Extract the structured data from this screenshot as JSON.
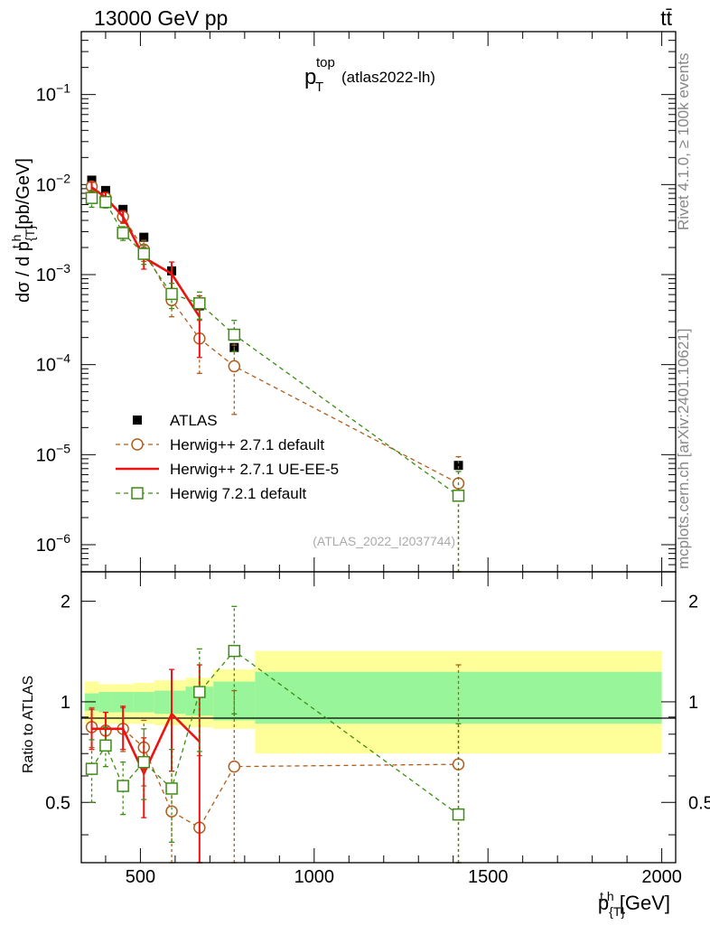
{
  "header": {
    "energy_label": "13000 GeV pp",
    "process_label": "tt̄"
  },
  "side_text": {
    "rivet": "Rivet 4.1.0, ≥ 100k events",
    "mcplots": "mcplots.cern.ch [arXiv:2401.10621]"
  },
  "chart_data": [
    {
      "panel": "main",
      "type": "scatter",
      "title_base": "p",
      "title_sub": "T",
      "title_sup": "top",
      "title_tag": "(atlas2022-lh)",
      "ylabel": "dσ / d p{T}t,h [pb/GeV]",
      "ylabel_parts": {
        "a": "dσ / d p",
        "sub": "{T}",
        "sup": "t,h",
        "b": " [pb/GeV]"
      },
      "y_scale": "log",
      "ylim": [
        5e-07,
        0.5
      ],
      "xlim": [
        330,
        2040
      ],
      "y_ticks": [
        {
          "v": 1e-06,
          "base": "10",
          "exp": "−6"
        },
        {
          "v": 1e-05,
          "base": "10",
          "exp": "−5"
        },
        {
          "v": 0.0001,
          "base": "10",
          "exp": "−4"
        },
        {
          "v": 0.001,
          "base": "10",
          "exp": "−3"
        },
        {
          "v": 0.01,
          "base": "10",
          "exp": "−2"
        },
        {
          "v": 0.1,
          "base": "10",
          "exp": "−1"
        }
      ],
      "watermark": "(ATLAS_2022_I2037744)",
      "legend_position": "bottom-left",
      "series": [
        {
          "name": "ATLAS",
          "style": "data",
          "color": "#000000",
          "x": [
            360,
            400,
            450,
            510,
            590,
            670,
            770,
            1415
          ],
          "values": [
            0.0112,
            0.0086,
            0.0053,
            0.0026,
            0.0011,
            0.00045,
            0.000155,
            7.6e-06
          ]
        },
        {
          "name": "Herwig++ 2.7.1 default",
          "style": "circle-dashed",
          "color": "#b05d1c",
          "x": [
            360,
            400,
            450,
            510,
            590,
            670,
            770,
            1415
          ],
          "values": [
            0.0095,
            0.0071,
            0.0044,
            0.0019,
            0.00052,
            0.000195,
            9.6e-05,
            4.8e-06
          ],
          "err_lo": [
            0.0083,
            0.0061,
            0.0037,
            0.0014,
            0.00034,
            8e-05,
            2.8e-05,
            3e-07
          ],
          "err_hi": [
            0.0107,
            0.0081,
            0.0051,
            0.0024,
            0.0007,
            0.00031,
            0.000165,
            9.5e-06
          ]
        },
        {
          "name": "Herwig++ 2.7.1 UE-EE-5",
          "style": "line-solid",
          "color": "#ee1111",
          "x": [
            360,
            400,
            450,
            510,
            590,
            670
          ],
          "values": [
            0.0093,
            0.0072,
            0.0044,
            0.00155,
            0.00102,
            0.00034
          ],
          "err_lo": [
            0.008,
            0.0063,
            0.0038,
            0.00115,
            0.00068,
            0.00012
          ],
          "err_hi": [
            0.0106,
            0.0082,
            0.0051,
            0.002,
            0.00138,
            0.00058
          ]
        },
        {
          "name": "Herwig 7.2.1 default",
          "style": "square-dashed",
          "color": "#3c8c14",
          "x": [
            360,
            400,
            450,
            510,
            590,
            670,
            770,
            1415
          ],
          "values": [
            0.0071,
            0.0064,
            0.0029,
            0.0017,
            0.00061,
            0.00048,
            0.000215,
            3.5e-06
          ],
          "err_lo": [
            0.0056,
            0.0055,
            0.0024,
            0.0013,
            0.00042,
            0.00032,
            0.00014,
            3e-07
          ],
          "err_hi": [
            0.0086,
            0.0073,
            0.0034,
            0.0021,
            0.0008,
            0.00064,
            0.00031,
            6.5e-06
          ]
        }
      ]
    },
    {
      "panel": "ratio",
      "type": "scatter",
      "ylabel": "Ratio to ATLAS",
      "xlabel": "p{T}t,h [GeV]",
      "xlabel_parts": {
        "a": "p",
        "sub": "{T}",
        "sup": "t,h",
        "b": " [GeV]"
      },
      "y_scale": "log",
      "ylim": [
        0.33,
        2.45
      ],
      "xlim": [
        330,
        2040
      ],
      "x_ticks": [
        500,
        1000,
        1500,
        2000
      ],
      "y_ticks": [
        0.5,
        1,
        2
      ],
      "bands": {
        "edges": [
          340,
          380,
          420,
          480,
          540,
          630,
          710,
          830,
          2000
        ],
        "yellow_lo": [
          0.86,
          0.86,
          0.86,
          0.86,
          0.85,
          0.84,
          0.83,
          0.7
        ],
        "yellow_hi": [
          1.15,
          1.13,
          1.13,
          1.14,
          1.16,
          1.18,
          1.25,
          1.42
        ],
        "green_lo": [
          0.94,
          0.93,
          0.93,
          0.93,
          0.92,
          0.91,
          0.88,
          0.86
        ],
        "green_hi": [
          1.06,
          1.07,
          1.07,
          1.07,
          1.08,
          1.11,
          1.15,
          1.23
        ]
      },
      "series": [
        {
          "name": "Herwig++ 2.7.1 default",
          "color": "#b05d1c",
          "x": [
            360,
            400,
            450,
            510,
            590,
            670,
            770,
            1415
          ],
          "values": [
            0.84,
            0.82,
            0.83,
            0.73,
            0.47,
            0.42,
            0.64,
            0.65
          ],
          "err_lo": [
            0.73,
            0.72,
            0.71,
            0.56,
            0.31,
            0.18,
            0.19,
            0.04
          ],
          "err_hi": [
            0.96,
            0.93,
            0.96,
            0.88,
            0.62,
            0.69,
            1.08,
            1.29
          ]
        },
        {
          "name": "Herwig++ 2.7.1 UE-EE-5",
          "color": "#ee1111",
          "x": [
            360,
            400,
            450,
            510,
            590,
            670
          ],
          "values": [
            0.83,
            0.83,
            0.83,
            0.61,
            0.92,
            0.76
          ],
          "err_lo": [
            0.72,
            0.73,
            0.72,
            0.45,
            0.62,
            0.28
          ],
          "err_hi": [
            0.95,
            0.93,
            0.97,
            0.78,
            1.25,
            1.29
          ]
        },
        {
          "name": "Herwig 7.2.1 default",
          "color": "#3c8c14",
          "x": [
            360,
            400,
            450,
            510,
            590,
            670,
            770,
            1415
          ],
          "values": [
            0.63,
            0.74,
            0.56,
            0.66,
            0.55,
            1.07,
            1.42,
            0.46
          ],
          "err_lo": [
            0.5,
            0.64,
            0.46,
            0.51,
            0.38,
            0.71,
            0.92,
            0.04
          ],
          "err_hi": [
            0.77,
            0.84,
            0.66,
            0.83,
            0.72,
            1.44,
            1.93,
            0.86
          ]
        }
      ]
    }
  ]
}
